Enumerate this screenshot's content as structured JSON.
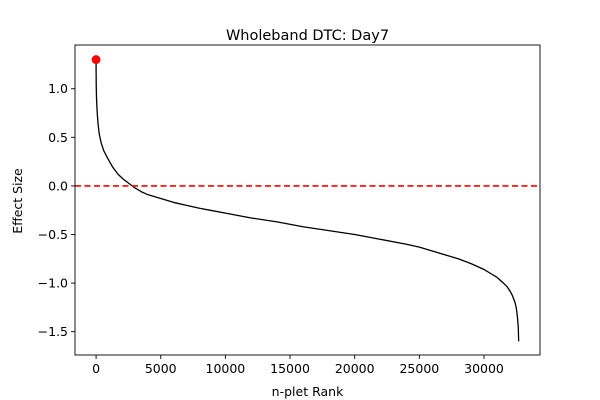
{
  "chart_data": {
    "type": "line",
    "title": "Wholeband DTC: Day7",
    "xlabel": "n-plet Rank",
    "ylabel": "Effect Size",
    "xlim": [
      -1630,
      34330
    ],
    "ylim": [
      -1.74,
      1.45
    ],
    "grid": false,
    "legend": "none",
    "x_ticks": [
      {
        "value": 0,
        "label": "0"
      },
      {
        "value": 5000,
        "label": "5000"
      },
      {
        "value": 10000,
        "label": "10000"
      },
      {
        "value": 15000,
        "label": "15000"
      },
      {
        "value": 20000,
        "label": "20000"
      },
      {
        "value": 25000,
        "label": "25000"
      },
      {
        "value": 30000,
        "label": "30000"
      }
    ],
    "y_ticks": [
      {
        "value": 1.0,
        "label": "1.0"
      },
      {
        "value": 0.5,
        "label": "0.5"
      },
      {
        "value": 0.0,
        "label": "0.0"
      },
      {
        "value": -0.5,
        "label": "−0.5"
      },
      {
        "value": -1.0,
        "label": "−1.0"
      },
      {
        "value": -1.5,
        "label": "−1.5"
      }
    ],
    "series": [
      {
        "style": "solid",
        "color": "#000000",
        "x": [
          0,
          2,
          10,
          30,
          60,
          100,
          150,
          250,
          400,
          600,
          800,
          1000,
          1300,
          1700,
          2100,
          2500,
          3000,
          3500,
          4000,
          5000,
          6000,
          7000,
          8000,
          9000,
          10000,
          12000,
          14000,
          16000,
          18000,
          20000,
          22000,
          24000,
          25000,
          26000,
          27000,
          28000,
          29000,
          30000,
          30500,
          31000,
          31500,
          31800,
          32000,
          32200,
          32400,
          32500,
          32550,
          32600,
          32650,
          32680
        ],
        "y": [
          1.3,
          1.2,
          1.05,
          0.92,
          0.82,
          0.73,
          0.64,
          0.53,
          0.44,
          0.36,
          0.31,
          0.26,
          0.19,
          0.12,
          0.07,
          0.03,
          -0.02,
          -0.06,
          -0.09,
          -0.13,
          -0.17,
          -0.2,
          -0.23,
          -0.255,
          -0.28,
          -0.33,
          -0.37,
          -0.42,
          -0.46,
          -0.5,
          -0.55,
          -0.6,
          -0.63,
          -0.67,
          -0.71,
          -0.75,
          -0.8,
          -0.86,
          -0.9,
          -0.94,
          -1.0,
          -1.04,
          -1.08,
          -1.13,
          -1.2,
          -1.26,
          -1.31,
          -1.37,
          -1.46,
          -1.6
        ]
      }
    ],
    "highlight_point": {
      "x": 0,
      "y": 1.3,
      "color": "#ff0000"
    },
    "reference_line": {
      "y": 0.0,
      "color": "#ff0000",
      "style": "dashed"
    }
  }
}
